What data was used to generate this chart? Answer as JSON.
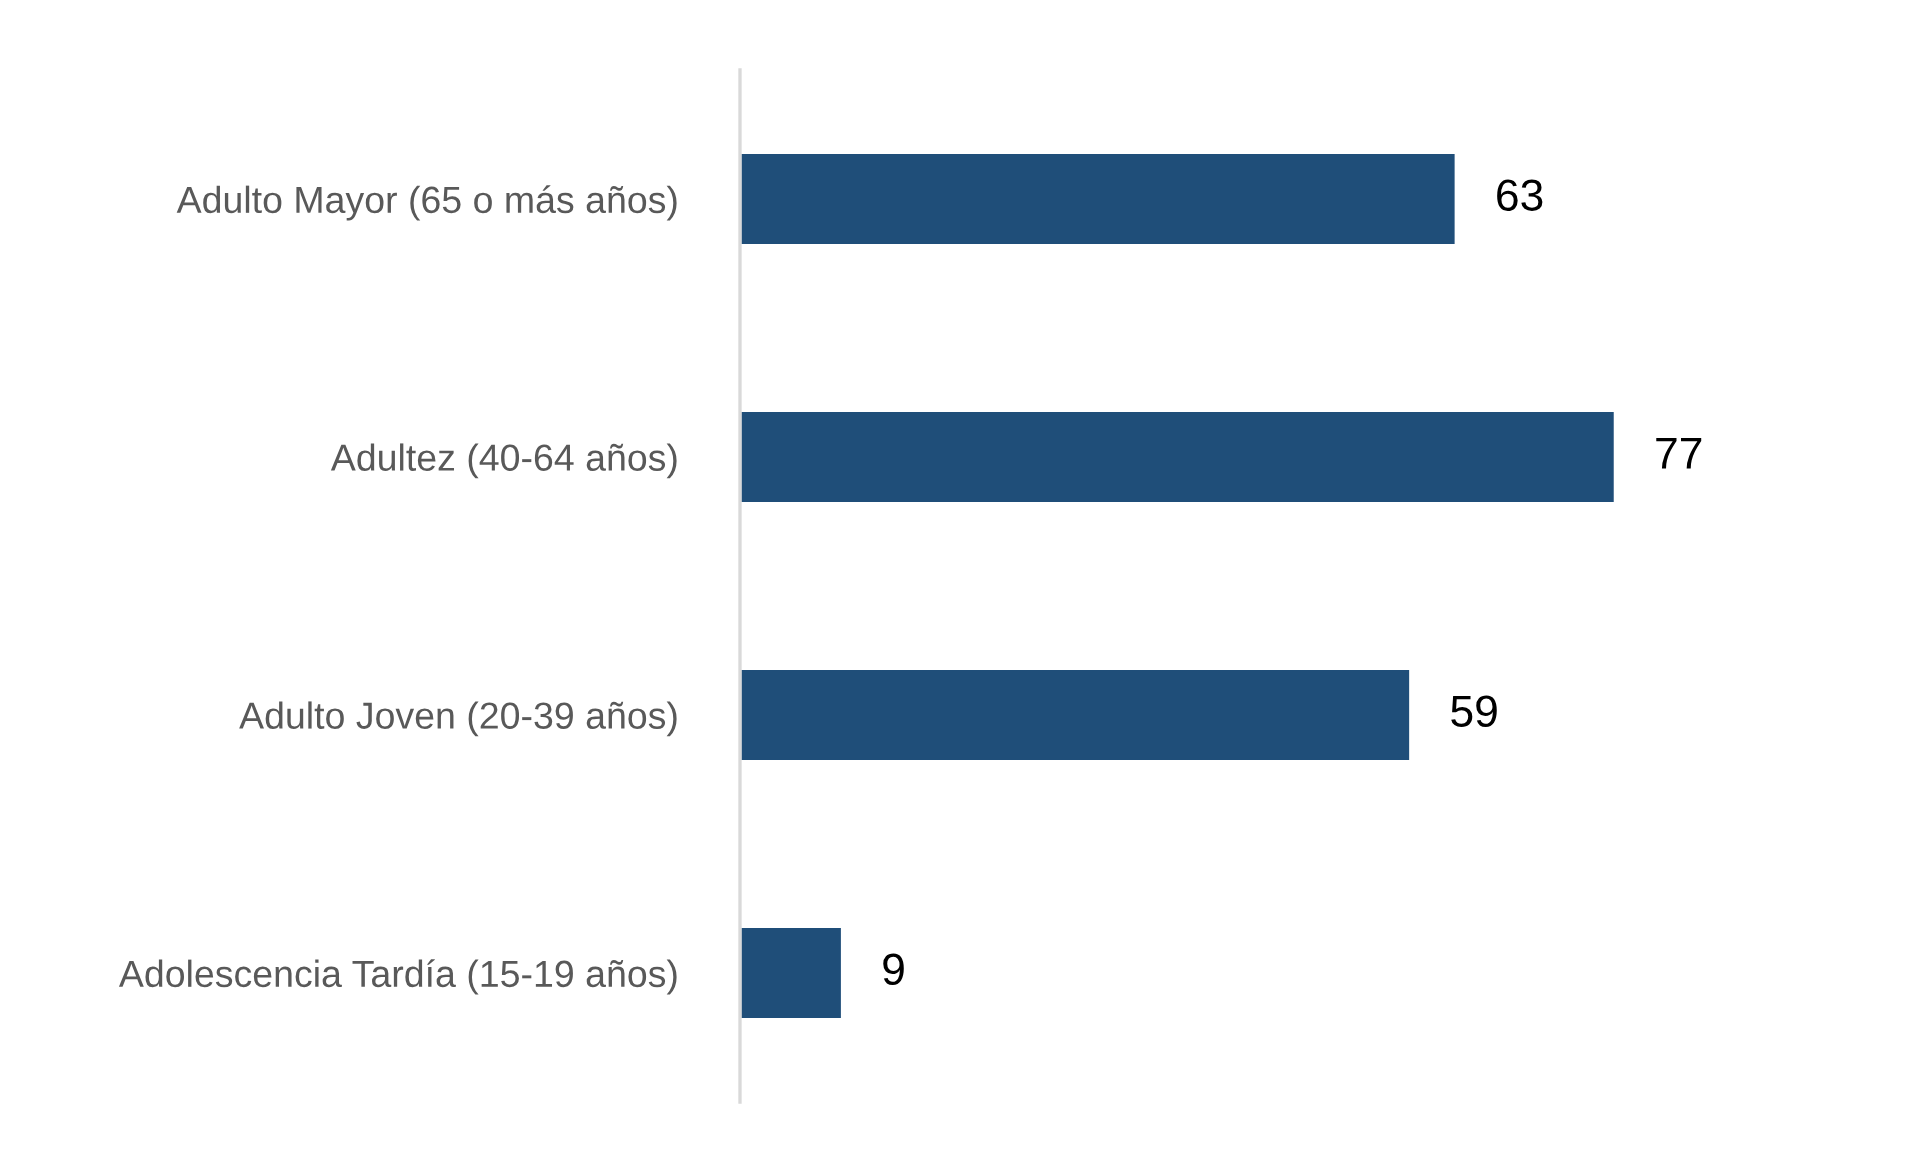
{
  "chart_data": {
    "type": "bar",
    "orientation": "horizontal",
    "categories": [
      "Adulto Mayor (65 o más años)",
      "Adultez (40-64 años)",
      "Adulto Joven (20-39 años)",
      "Adolescencia Tardía (15-19 años)"
    ],
    "values": [
      63,
      77,
      59,
      9
    ],
    "color": "#1f4e79",
    "data_labels": true,
    "grid": false,
    "legend": false
  }
}
